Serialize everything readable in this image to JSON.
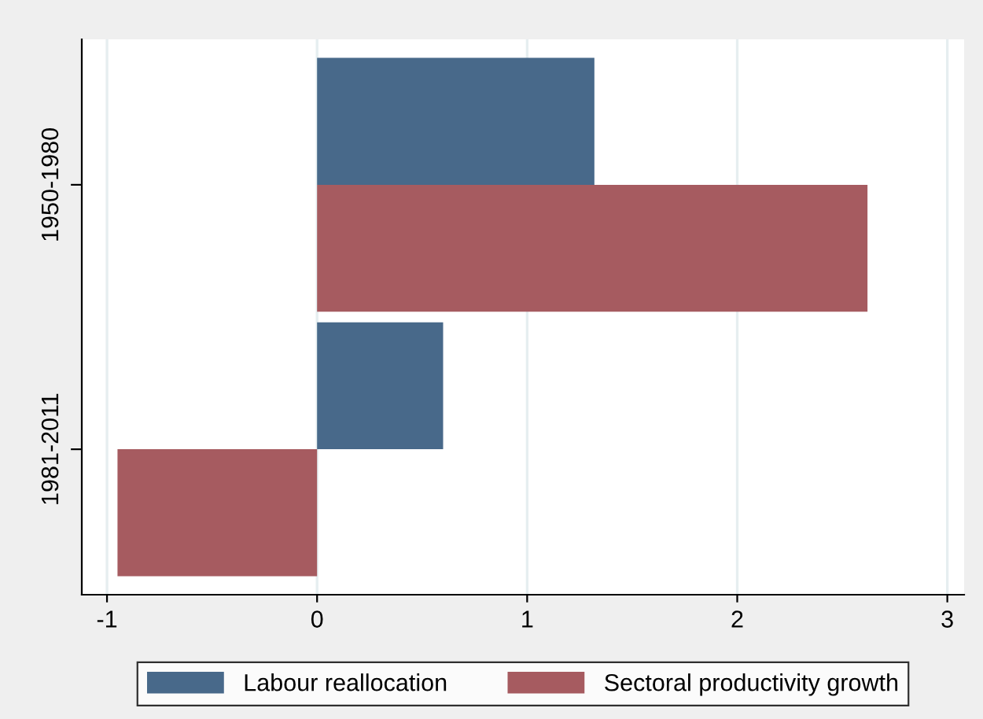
{
  "chart_data": {
    "type": "bar",
    "orientation": "horizontal",
    "categories": [
      "1950-1980",
      "1981-2011"
    ],
    "series": [
      {
        "name": "Labour reallocation",
        "color": "#48698a",
        "values": [
          1.32,
          0.6
        ]
      },
      {
        "name": "Sectoral productivity growth",
        "color": "#a65b60",
        "values": [
          2.62,
          -0.95
        ]
      }
    ],
    "xlim": [
      -1.12,
      3.08
    ],
    "xticks": [
      -1,
      0,
      1,
      2,
      3
    ],
    "grid": "x",
    "legend": "bottom"
  }
}
